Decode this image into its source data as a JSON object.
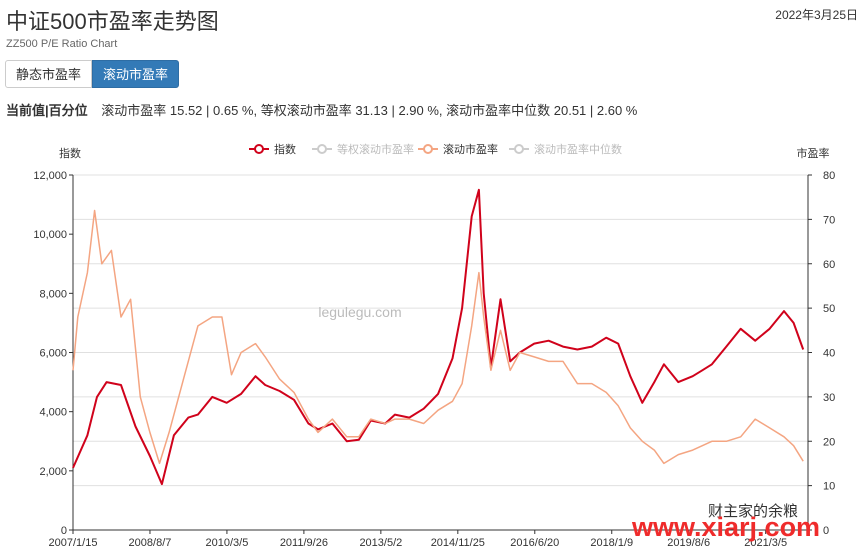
{
  "header": {
    "title": "中证500市盈率走势图",
    "date": "2022年3月25日",
    "subtitle": "ZZ500 P/E Ratio Chart"
  },
  "tabs": [
    {
      "label": "静态市盈率",
      "active": false
    },
    {
      "label": "滚动市盈率",
      "active": true
    }
  ],
  "current": {
    "label": "当前值|百分位",
    "text": "滚动市盈率 15.52 | 0.65 %, 等权滚动市盈率 31.13 | 2.90 %, 滚动市盈率中位数 20.51 | 2.60 %"
  },
  "watermark": {
    "logo_text": "财主家的余粮",
    "url": "www.xiarj.com",
    "chart_text": "legulegu.com"
  },
  "chart_data": {
    "type": "line",
    "left_axis": {
      "label": "指数",
      "ylim": [
        0,
        12000
      ],
      "ticks": [
        "0",
        "2,000",
        "4,000",
        "6,000",
        "8,000",
        "10,000",
        "12,000"
      ]
    },
    "right_axis": {
      "label": "市盈率",
      "ylim": [
        0,
        80
      ],
      "ticks": [
        "0",
        "10",
        "20",
        "30",
        "40",
        "50",
        "60",
        "70",
        "80"
      ]
    },
    "x_ticks": [
      "2007/1/15",
      "2008/8/7",
      "2010/3/5",
      "2011/9/26",
      "2013/5/2",
      "2014/11/25",
      "2016/6/20",
      "2018/1/9",
      "2019/8/6",
      "2021/3/5"
    ],
    "grid": true,
    "legend_position": "top-center",
    "series": [
      {
        "name": "指数",
        "axis": "left",
        "color": "#d0021b",
        "visible": true,
        "x": [
          2007.0,
          2007.3,
          2007.5,
          2007.7,
          2008.0,
          2008.3,
          2008.6,
          2008.85,
          2009.1,
          2009.4,
          2009.6,
          2009.9,
          2010.2,
          2010.5,
          2010.8,
          2011.0,
          2011.3,
          2011.6,
          2011.9,
          2012.1,
          2012.4,
          2012.7,
          2012.95,
          2013.2,
          2013.5,
          2013.7,
          2014.0,
          2014.3,
          2014.6,
          2014.9,
          2015.1,
          2015.3,
          2015.45,
          2015.55,
          2015.7,
          2015.9,
          2016.1,
          2016.3,
          2016.6,
          2016.9,
          2017.2,
          2017.5,
          2017.8,
          2018.1,
          2018.35,
          2018.6,
          2018.85,
          2019.1,
          2019.3,
          2019.6,
          2019.9,
          2020.1,
          2020.3,
          2020.6,
          2020.9,
          2021.2,
          2021.5,
          2021.8,
          2022.0,
          2022.2
        ],
        "values": [
          2100,
          3200,
          4500,
          5000,
          4900,
          3500,
          2500,
          1550,
          3200,
          3800,
          3900,
          4500,
          4300,
          4600,
          5200,
          4900,
          4700,
          4400,
          3600,
          3400,
          3600,
          3000,
          3050,
          3700,
          3600,
          3900,
          3800,
          4100,
          4600,
          5800,
          7500,
          10600,
          11500,
          8000,
          5500,
          7800,
          5700,
          6000,
          6300,
          6400,
          6200,
          6100,
          6200,
          6500,
          6300,
          5200,
          4300,
          5000,
          5600,
          5000,
          5200,
          5400,
          5600,
          6200,
          6800,
          6400,
          6800,
          7400,
          7000,
          6100
        ]
      },
      {
        "name": "等权滚动市盈率",
        "axis": "right",
        "color": "#cccccc",
        "visible": false
      },
      {
        "name": "滚动市盈率",
        "axis": "right",
        "color": "#f4a582",
        "visible": true,
        "x": [
          2007.0,
          2007.1,
          2007.3,
          2007.45,
          2007.6,
          2007.8,
          2008.0,
          2008.2,
          2008.4,
          2008.6,
          2008.8,
          2009.0,
          2009.3,
          2009.6,
          2009.9,
          2010.1,
          2010.3,
          2010.5,
          2010.8,
          2011.0,
          2011.3,
          2011.6,
          2011.9,
          2012.1,
          2012.4,
          2012.7,
          2012.95,
          2013.2,
          2013.5,
          2013.7,
          2014.0,
          2014.3,
          2014.6,
          2014.9,
          2015.1,
          2015.3,
          2015.45,
          2015.55,
          2015.7,
          2015.9,
          2016.1,
          2016.3,
          2016.6,
          2016.9,
          2017.2,
          2017.5,
          2017.8,
          2018.1,
          2018.35,
          2018.6,
          2018.85,
          2019.1,
          2019.3,
          2019.6,
          2019.9,
          2020.1,
          2020.3,
          2020.6,
          2020.9,
          2021.2,
          2021.5,
          2021.8,
          2022.0,
          2022.2
        ],
        "values": [
          36,
          48,
          58,
          72,
          60,
          63,
          48,
          52,
          30,
          22,
          15,
          22,
          34,
          46,
          48,
          48,
          35,
          40,
          42,
          39,
          34,
          31,
          25,
          22,
          25,
          21,
          21,
          25,
          24,
          25,
          25,
          24,
          27,
          29,
          33,
          46,
          58,
          48,
          36,
          45,
          36,
          40,
          39,
          38,
          38,
          33,
          33,
          31,
          28,
          23,
          20,
          18,
          15,
          17,
          18,
          19,
          20,
          20,
          21,
          25,
          23,
          21,
          19,
          15.5
        ]
      },
      {
        "name": "滚动市盈率中位数",
        "axis": "right",
        "color": "#cccccc",
        "visible": false
      }
    ]
  }
}
